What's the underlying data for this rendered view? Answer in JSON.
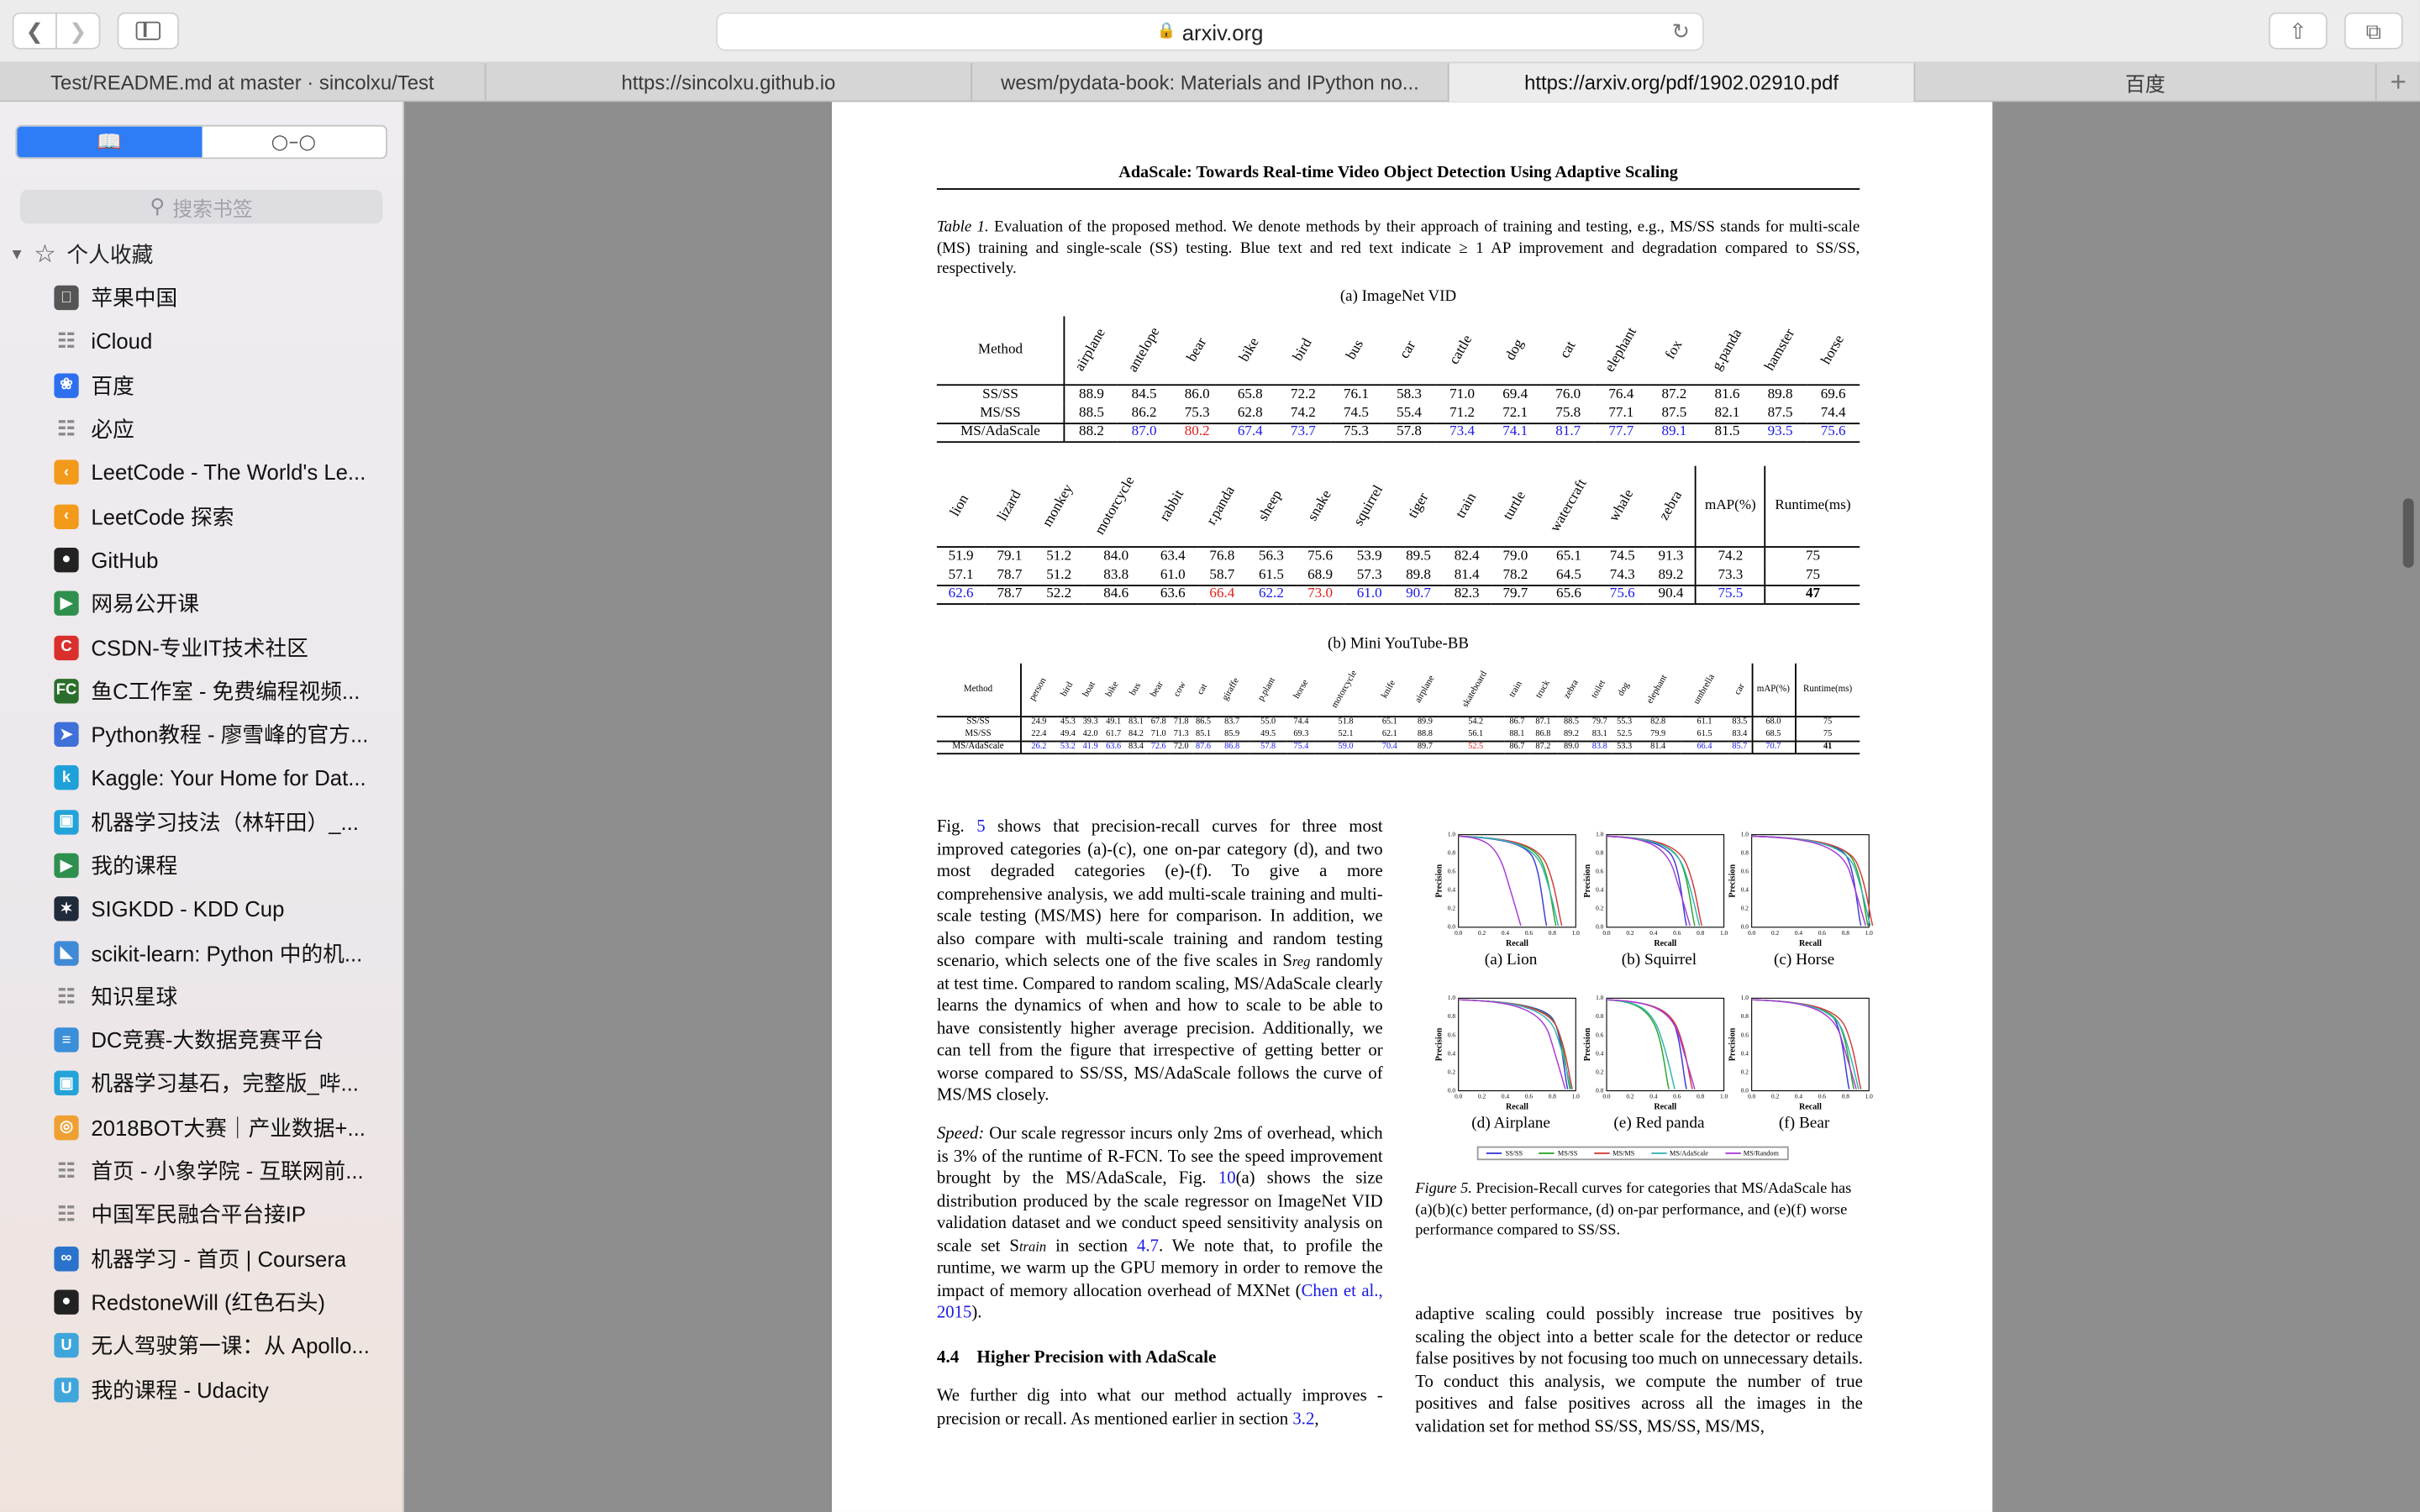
{
  "browser": {
    "url": "arxiv.org",
    "tabs": [
      {
        "label": "Test/README.md at master · sincolxu/Test",
        "active": false
      },
      {
        "label": "https://sincolxu.github.io",
        "active": false
      },
      {
        "label": "wesm/pydata-book: Materials and IPython no...",
        "active": false
      },
      {
        "label": "https://arxiv.org/pdf/1902.02910.pdf",
        "active": true
      },
      {
        "label": "百度",
        "active": false
      }
    ],
    "new_tab": "+"
  },
  "sidebar": {
    "search_placeholder": "搜索书签",
    "favorites_header": "个人收藏",
    "bookmarks": [
      {
        "label": "苹果中国",
        "icon": "apple-icon",
        "color": "#555555"
      },
      {
        "label": "iCloud",
        "icon": "book-icon",
        "color": "#8a8a8a"
      },
      {
        "label": "百度",
        "icon": "baidu-paw-icon",
        "color": "#2e6ff0"
      },
      {
        "label": "必应",
        "icon": "book-icon",
        "color": "#8a8a8a"
      },
      {
        "label": "LeetCode - The World's Le...",
        "icon": "leetcode-icon",
        "color": "#f39a1b"
      },
      {
        "label": "LeetCode 探索",
        "icon": "leetcode-icon",
        "color": "#f39a1b"
      },
      {
        "label": "GitHub",
        "icon": "github-icon",
        "color": "#222222"
      },
      {
        "label": "网易公开课",
        "icon": "play-icon",
        "color": "#2f8f4e"
      },
      {
        "label": "CSDN-专业IT技术社区",
        "icon": "csdn-icon",
        "color": "#d9302d"
      },
      {
        "label": "鱼C工作室 - 免费编程视频...",
        "icon": "fc-icon",
        "color": "#2b6e2b"
      },
      {
        "label": "Python教程 - 廖雪峰的官方...",
        "icon": "rocket-icon",
        "color": "#3f6fd8"
      },
      {
        "label": "Kaggle: Your Home for Dat...",
        "icon": "kaggle-icon",
        "color": "#1ea1d9"
      },
      {
        "label": "机器学习技法（林轩田）_...",
        "icon": "bilibili-icon",
        "color": "#23a3d8"
      },
      {
        "label": "我的课程",
        "icon": "play-icon",
        "color": "#2f8f4e"
      },
      {
        "label": "SIGKDD - KDD Cup",
        "icon": "kdd-icon",
        "color": "#1f2a3a"
      },
      {
        "label": "scikit-learn: Python 中的机...",
        "icon": "sklearn-icon",
        "color": "#3f8ad6"
      },
      {
        "label": "知识星球",
        "icon": "book-icon",
        "color": "#8a8a8a"
      },
      {
        "label": "DC竞赛-大数据竞赛平台",
        "icon": "dc-icon",
        "color": "#3b8fd8"
      },
      {
        "label": "机器学习基石，完整版_哔...",
        "icon": "bilibili-icon",
        "color": "#23a3d8"
      },
      {
        "label": "2018BOT大赛｜产业数据+...",
        "icon": "bot-icon",
        "color": "#f0a032"
      },
      {
        "label": "首页 - 小象学院 - 互联网前...",
        "icon": "book-icon",
        "color": "#8a8a8a"
      },
      {
        "label": "中国军民融合平台接IP",
        "icon": "book-icon",
        "color": "#8a8a8a"
      },
      {
        "label": "机器学习 - 首页 | Coursera",
        "icon": "coursera-icon",
        "color": "#2a73cc"
      },
      {
        "label": "RedstoneWill (红色石头)",
        "icon": "github-icon",
        "color": "#222222"
      },
      {
        "label": "无人驾驶第一课：从 Apollo...",
        "icon": "udacity-icon",
        "color": "#3fa6dc"
      },
      {
        "label": "我的课程 - Udacity",
        "icon": "udacity-icon",
        "color": "#3fa6dc"
      }
    ]
  },
  "paper": {
    "running_title": "AdaScale: Towards Real-time Video Object Detection Using Adaptive Scaling",
    "caption_label": "Table 1.",
    "caption_text": "Evaluation of the proposed method.  We denote methods by their approach of training and testing, e.g., MS/SS stands for multi-scale (MS) training and single-scale (SS) testing. Blue text and red text indicate ≥ 1 AP improvement and degradation compared to SS/SS, respectively.",
    "table_a": {
      "title": "(a) ImageNet VID",
      "method_header": "Method",
      "cols1": [
        "airplane",
        "antelope",
        "bear",
        "bike",
        "bird",
        "bus",
        "car",
        "cattle",
        "dog",
        "cat",
        "elephant",
        "fox",
        "g.panda",
        "hamster",
        "horse"
      ],
      "rows1": [
        {
          "method": "SS/SS",
          "vals": [
            "88.9",
            "84.5",
            "86.0",
            "65.8",
            "72.2",
            "76.1",
            "58.3",
            "71.0",
            "69.4",
            "76.0",
            "76.4",
            "87.2",
            "81.6",
            "89.8",
            "69.6"
          ],
          "colors": [
            "",
            "",
            "",
            "",
            "",
            "",
            "",
            "",
            "",
            "",
            "",
            "",
            "",
            "",
            ""
          ]
        },
        {
          "method": "MS/SS",
          "vals": [
            "88.5",
            "86.2",
            "75.3",
            "62.8",
            "74.2",
            "74.5",
            "55.4",
            "71.2",
            "72.1",
            "75.8",
            "77.1",
            "87.5",
            "82.1",
            "87.5",
            "74.4"
          ],
          "colors": [
            "",
            "",
            "",
            "",
            "",
            "",
            "",
            "",
            "",
            "",
            "",
            "",
            "",
            "",
            ""
          ]
        },
        {
          "method": "MS/AdaScale",
          "vals": [
            "88.2",
            "87.0",
            "80.2",
            "67.4",
            "73.7",
            "75.3",
            "57.8",
            "73.4",
            "74.1",
            "81.7",
            "77.7",
            "89.1",
            "81.5",
            "93.5",
            "75.6"
          ],
          "colors": [
            "",
            "b",
            "r",
            "b",
            "b",
            "",
            "",
            "b",
            "b",
            "b",
            "b",
            "b",
            "",
            "b",
            "b"
          ]
        }
      ],
      "cols2": [
        "lion",
        "lizard",
        "monkey",
        "motorcycle",
        "rabbit",
        "r.panda",
        "sheep",
        "snake",
        "squirrel",
        "tiger",
        "train",
        "turtle",
        "watercraft",
        "whale",
        "zebra"
      ],
      "map_header": "mAP(%)",
      "runtime_header": "Runtime(ms)",
      "rows2": [
        {
          "vals": [
            "51.9",
            "79.1",
            "51.2",
            "84.0",
            "63.4",
            "76.8",
            "56.3",
            "75.6",
            "53.9",
            "89.5",
            "82.4",
            "79.0",
            "65.1",
            "74.5",
            "91.3"
          ],
          "colors": [
            "",
            "",
            "",
            "",
            "",
            "",
            "",
            "",
            "",
            "",
            "",
            "",
            "",
            "",
            ""
          ],
          "map": "74.2",
          "map_color": "",
          "runtime": "75",
          "runtime_bold": false
        },
        {
          "vals": [
            "57.1",
            "78.7",
            "51.2",
            "83.8",
            "61.0",
            "58.7",
            "61.5",
            "68.9",
            "57.3",
            "89.8",
            "81.4",
            "78.2",
            "64.5",
            "74.3",
            "89.2"
          ],
          "colors": [
            "",
            "",
            "",
            "",
            "",
            "",
            "",
            "",
            "",
            "",
            "",
            "",
            "",
            "",
            ""
          ],
          "map": "73.3",
          "map_color": "",
          "runtime": "75",
          "runtime_bold": false
        },
        {
          "vals": [
            "62.6",
            "78.7",
            "52.2",
            "84.6",
            "63.6",
            "66.4",
            "62.2",
            "73.0",
            "61.0",
            "90.7",
            "82.3",
            "79.7",
            "65.6",
            "75.6",
            "90.4"
          ],
          "colors": [
            "b",
            "",
            "",
            "",
            "",
            "r",
            "b",
            "r",
            "b",
            "b",
            "",
            "",
            "",
            "b",
            ""
          ],
          "map": "75.5",
          "map_color": "b",
          "runtime": "47",
          "runtime_bold": true
        }
      ]
    },
    "table_b": {
      "title": "(b) Mini YouTube-BB",
      "method_header": "Method",
      "cols": [
        "person",
        "bird",
        "boat",
        "bike",
        "bus",
        "bear",
        "cow",
        "cat",
        "giraffe",
        "p.plant",
        "horse",
        "motorcycle",
        "knife",
        "airplane",
        "skateboard",
        "train",
        "truck",
        "zebra",
        "toilet",
        "dog",
        "elephant",
        "umbrella",
        "car"
      ],
      "map_header": "mAP(%)",
      "runtime_header": "Runtime(ms)",
      "rows": [
        {
          "method": "SS/SS",
          "vals": [
            "24.9",
            "45.3",
            "39.3",
            "49.1",
            "83.1",
            "67.8",
            "71.8",
            "86.5",
            "83.7",
            "55.0",
            "74.4",
            "51.8",
            "65.1",
            "89.9",
            "54.2",
            "86.7",
            "87.1",
            "88.5",
            "79.7",
            "55.3",
            "82.8",
            "61.1",
            "83.5"
          ],
          "colors": [
            "",
            "",
            "",
            "",
            "",
            "",
            "",
            "",
            "",
            "",
            "",
            "",
            "",
            "",
            "",
            "",
            "",
            "",
            "",
            "",
            "",
            "",
            ""
          ],
          "map": "68.0",
          "map_color": "",
          "runtime": "75",
          "runtime_bold": false
        },
        {
          "method": "MS/SS",
          "vals": [
            "22.4",
            "49.4",
            "42.0",
            "61.7",
            "84.2",
            "71.0",
            "71.3",
            "85.1",
            "85.9",
            "49.5",
            "69.3",
            "52.1",
            "62.1",
            "88.8",
            "56.1",
            "88.1",
            "86.8",
            "89.2",
            "83.1",
            "52.5",
            "79.9",
            "61.5",
            "83.4"
          ],
          "colors": [
            "",
            "",
            "",
            "",
            "",
            "",
            "",
            "",
            "",
            "",
            "",
            "",
            "",
            "",
            "",
            "",
            "",
            "",
            "",
            "",
            "",
            "",
            ""
          ],
          "map": "68.5",
          "map_color": "",
          "runtime": "75",
          "runtime_bold": false
        },
        {
          "method": "MS/AdaScale",
          "vals": [
            "26.2",
            "53.2",
            "41.9",
            "63.6",
            "83.4",
            "72.6",
            "72.0",
            "87.6",
            "86.8",
            "57.8",
            "75.4",
            "59.0",
            "70.4",
            "89.7",
            "52.5",
            "86.7",
            "87.2",
            "89.0",
            "83.8",
            "53.3",
            "81.4",
            "66.4",
            "85.7"
          ],
          "colors": [
            "b",
            "b",
            "b",
            "b",
            "",
            "b",
            "",
            "b",
            "b",
            "b",
            "b",
            "b",
            "b",
            "",
            "r",
            "",
            "",
            "",
            "b",
            "",
            "",
            "b",
            "b"
          ],
          "map": "70.7",
          "map_color": "b",
          "runtime": "41",
          "runtime_bold": true
        }
      ]
    },
    "left_col": {
      "p1_pre": "Fig.",
      "p1_ref": "5",
      "p1": " shows that precision-recall curves for three most improved categories (a)-(c), one on-par category (d), and two most degraded categories (e)-(f). To give a more comprehensive analysis, we add multi-scale training and multi-scale testing (MS/MS) here for comparison. In addition, we also compare with multi-scale training and random testing scenario, which selects one of the five scales in S",
      "p1_sub": "reg",
      "p1_post": " randomly at test time. Compared to random scaling, MS/AdaScale clearly learns the dynamics of when and how to scale to be able to have consistently higher average precision. Additionally, we can tell from the figure that irrespective of getting better or worse compared to SS/SS, MS/AdaScale follows the curve of MS/MS closely.",
      "p2_lead": "Speed:",
      "p2_a": " Our scale regressor incurs only 2ms of overhead, which is 3% of the runtime of R-FCN. To see the speed improvement brought by the MS/AdaScale, Fig. ",
      "p2_ref1": "10",
      "p2_b": "(a) shows the size distribution produced by the scale regressor on ImageNet VID validation dataset and we conduct speed sensitivity analysis on scale set S",
      "p2_sub": "train",
      "p2_c": " in section ",
      "p2_ref2": "4.7",
      "p2_d": ". We note that, to profile the runtime, we warm up the GPU memory in order to remove the impact of memory allocation overhead of MXNet (",
      "p2_ref3": "Chen et al., 2015",
      "p2_e": ").",
      "section": "4.4    Higher Precision with AdaScale",
      "p3_a": "We further dig into what our method actually improves - precision or recall.  As mentioned earlier in section ",
      "p3_ref": "3.2",
      "p3_b": ","
    },
    "figure": {
      "panels": [
        "(a) Lion",
        "(b) Squirrel",
        "(c) Horse",
        "(d) Airplane",
        "(e) Red panda",
        "(f) Bear"
      ],
      "ylabel": "Precision",
      "xlabel": "Recall",
      "ticks": [
        "0.0",
        "0.2",
        "0.4",
        "0.6",
        "0.8",
        "1.0"
      ],
      "legend": [
        "SS/SS",
        "MS/SS",
        "MS/MS",
        "MS/AdaScale",
        "MS/Random"
      ],
      "series_colors": {
        "SS/SS": "#3a3ad6",
        "MS/SS": "#2aa52a",
        "MS/MS": "#d63a3a",
        "MS/AdaScale": "#33b3b3",
        "MS/Random": "#a83ad6"
      },
      "caption_label": "Figure 5.",
      "caption_text": " Precision-Recall curves for categories that MS/AdaScale has (a)(b)(c) better performance, (d) on-par performance, and (e)(f) worse performance compared to SS/SS."
    },
    "right_col_text": "adaptive scaling could possibly increase true positives by scaling the object into a better scale for the detector or reduce false positives by not focusing too much on unnecessary details.  To conduct this analysis, we compute the number of true positives and false positives across all the images in the validation set for method SS/SS, MS/SS, MS/MS,"
  }
}
